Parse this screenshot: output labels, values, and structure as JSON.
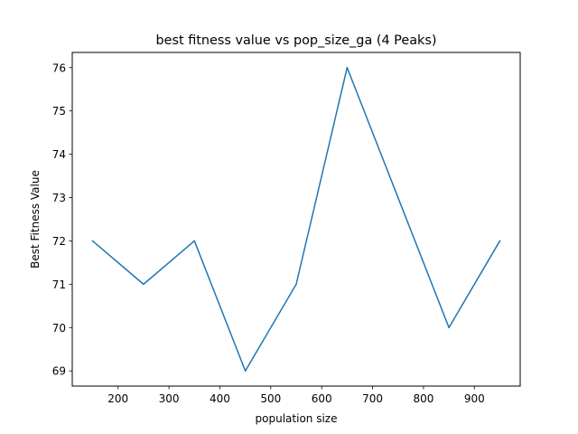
{
  "chart_data": {
    "type": "line",
    "title": "best fitness value vs pop_size_ga (4 Peaks)",
    "xlabel": "population size",
    "ylabel": "Best Fitness Value",
    "x": [
      150,
      250,
      350,
      450,
      550,
      650,
      750,
      850,
      950
    ],
    "series": [
      {
        "values": [
          72,
          71,
          72,
          69,
          71,
          76,
          73,
          70,
          72
        ],
        "color": "#1f77b4"
      }
    ],
    "xlim": [
      110,
      990
    ],
    "ylim": [
      68.65,
      76.35
    ],
    "xticks": [
      200,
      300,
      400,
      500,
      600,
      700,
      800,
      900
    ],
    "yticks": [
      69,
      70,
      71,
      72,
      73,
      74,
      75,
      76
    ],
    "grid": false,
    "legend": "none"
  }
}
